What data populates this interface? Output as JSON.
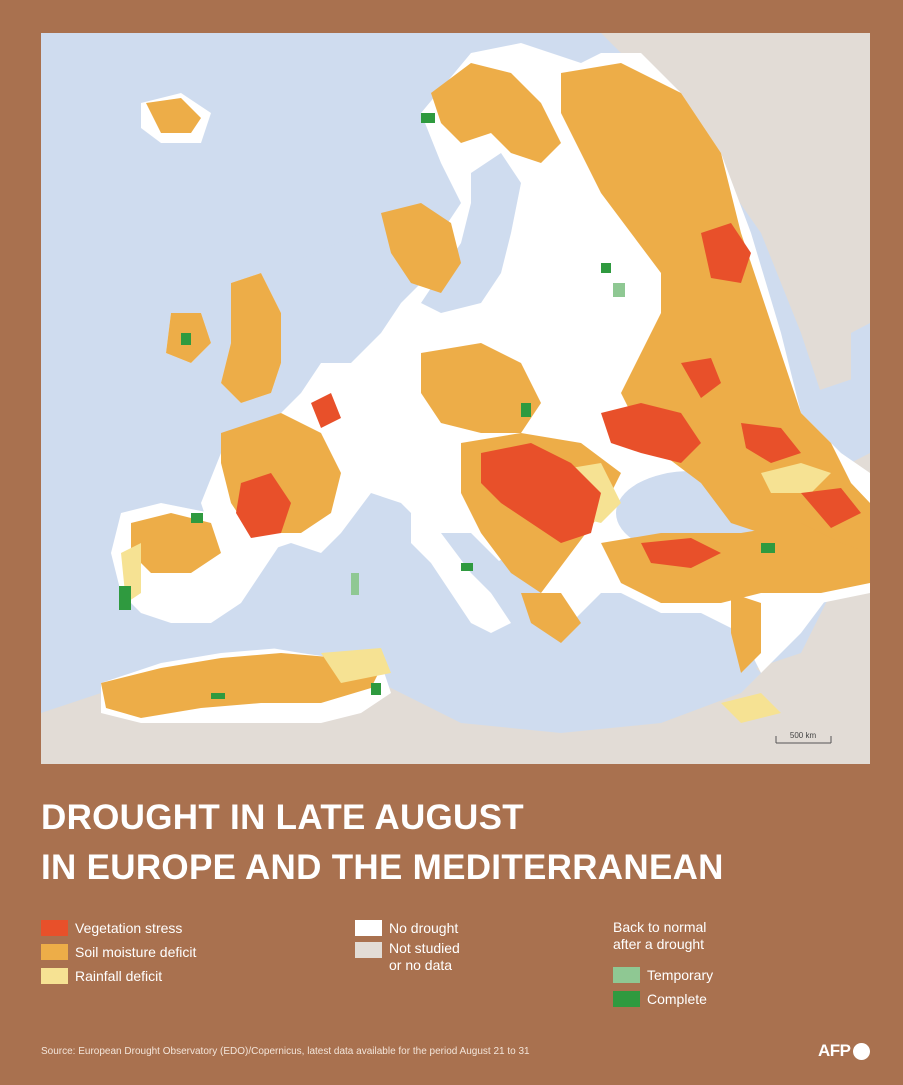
{
  "title_line_1": "DROUGHT IN LATE AUGUST",
  "title_line_2": "IN EUROPE AND THE MEDITERRANEAN",
  "scale_bar_label": "500 km",
  "legend": {
    "drought_items": [
      {
        "label": "Vegetation stress",
        "color": "#e8502a"
      },
      {
        "label": "Soil moisture deficit",
        "color": "#edad48"
      },
      {
        "label": "Rainfall deficit",
        "color": "#f6e293"
      }
    ],
    "status_items": [
      {
        "label": "No drought",
        "color": "#ffffff"
      },
      {
        "label": "Not studied\nor no data",
        "color": "#e2dcd6"
      }
    ],
    "recovery_title": "Back to normal\nafter a drought",
    "recovery_items": [
      {
        "label": "Temporary",
        "color": "#8fc893"
      },
      {
        "label": "Complete",
        "color": "#2f9a3f"
      }
    ]
  },
  "colors": {
    "background": "#a9714f",
    "sea": "#cfdcef",
    "land_no_data": "#e2dcd6",
    "no_drought": "#ffffff"
  },
  "source": "Source: European Drought Observatory (EDO)/Copernicus, latest data available for the period August 21 to 31",
  "credit": "AFP"
}
